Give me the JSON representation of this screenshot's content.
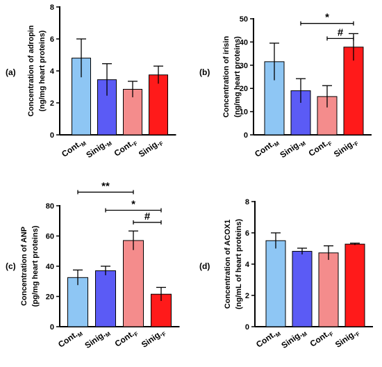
{
  "chart_data": [
    {
      "panel": "(a)",
      "type": "bar",
      "ylabel_line1": "Concentration of adropin",
      "ylabel_line2": "(ng/mg heart proteins)",
      "categories": [
        {
          "base": "Cont.",
          "sub": "M"
        },
        {
          "base": "Sinig.",
          "sub": "M"
        },
        {
          "base": "Cont.",
          "sub": "F"
        },
        {
          "base": "Sinig.",
          "sub": "F"
        }
      ],
      "values": [
        4.8,
        3.45,
        2.85,
        3.75
      ],
      "errors": [
        1.2,
        1.0,
        0.5,
        0.55
      ],
      "ylim": [
        0,
        8
      ],
      "yticks": [
        0,
        2,
        4,
        6,
        8
      ],
      "colors": [
        "#8ec6f4",
        "#5b5bf5",
        "#f48c8c",
        "#ff1a1a"
      ],
      "significance": []
    },
    {
      "panel": "(b)",
      "type": "bar",
      "ylabel_line1": "Concentration of irisin",
      "ylabel_line2": "(ng/mg heart proteins)",
      "categories": [
        {
          "base": "Cont.",
          "sub": "M"
        },
        {
          "base": "Sinig.",
          "sub": "M"
        },
        {
          "base": "Cont.",
          "sub": "F"
        },
        {
          "base": "Sinig.",
          "sub": "F"
        }
      ],
      "values": [
        31.5,
        19,
        16.5,
        37.8
      ],
      "errors": [
        8,
        5.2,
        4.7,
        5.8
      ],
      "ylim": [
        0,
        50
      ],
      "yticks": [
        0,
        10,
        20,
        30,
        40,
        50
      ],
      "colors": [
        "#8ec6f4",
        "#5b5bf5",
        "#f48c8c",
        "#ff1a1a"
      ],
      "significance": [
        {
          "from": 1,
          "to": 3,
          "label": "*",
          "y": 48
        },
        {
          "from": 2,
          "to": 3,
          "label": "#",
          "y": 41.5
        }
      ]
    },
    {
      "panel": "(c)",
      "type": "bar",
      "ylabel_line1": "Concentration of ANP",
      "ylabel_line2": "(pg/mg heart proteins)",
      "categories": [
        {
          "base": "Cont.",
          "sub": "M"
        },
        {
          "base": "Sinig.",
          "sub": "M"
        },
        {
          "base": "Cont.",
          "sub": "F"
        },
        {
          "base": "Sinig.",
          "sub": "F"
        }
      ],
      "values": [
        32.5,
        37,
        57,
        21.5
      ],
      "errors": [
        5,
        3,
        6.3,
        4.5
      ],
      "ylim": [
        0,
        80
      ],
      "yticks": [
        0,
        20,
        40,
        60,
        80
      ],
      "colors": [
        "#8ec6f4",
        "#5b5bf5",
        "#f48c8c",
        "#ff1a1a"
      ],
      "significance": [
        {
          "from": 0,
          "to": 2,
          "label": "**",
          "y": 89
        },
        {
          "from": 1,
          "to": 3,
          "label": "*",
          "y": 77
        },
        {
          "from": 2,
          "to": 3,
          "label": "#",
          "y": 69
        }
      ]
    },
    {
      "panel": "(d)",
      "type": "bar",
      "ylabel_line1": "Concentration of ACOX1",
      "ylabel_line2": "(ng/mL of heart proteins)",
      "categories": [
        {
          "base": "Cont.",
          "sub": "M"
        },
        {
          "base": "Sinig.",
          "sub": "M"
        },
        {
          "base": "Cont.",
          "sub": "F"
        },
        {
          "base": "Sinig.",
          "sub": "F"
        }
      ],
      "values": [
        5.5,
        4.82,
        4.72,
        5.28
      ],
      "errors": [
        0.5,
        0.2,
        0.45,
        0.06
      ],
      "ylim": [
        0,
        8
      ],
      "yticks": [
        0,
        2,
        4,
        6,
        8
      ],
      "colors": [
        "#8ec6f4",
        "#5b5bf5",
        "#f48c8c",
        "#ff1a1a"
      ],
      "significance": []
    }
  ]
}
